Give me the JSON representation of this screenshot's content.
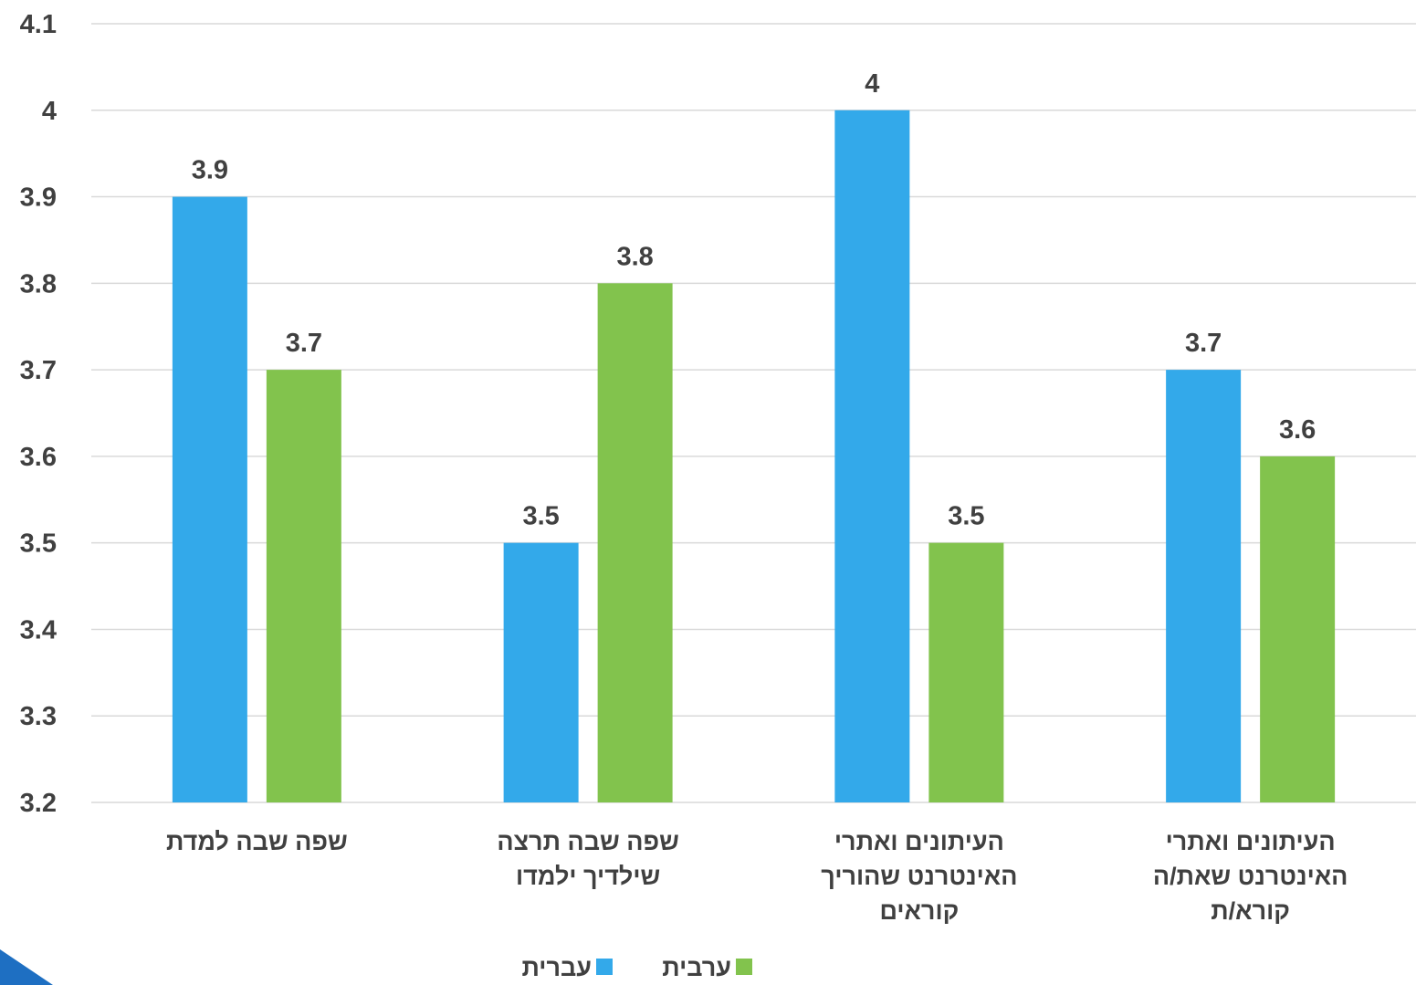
{
  "chart_data": {
    "type": "bar",
    "title": "",
    "xlabel": "",
    "ylabel": "",
    "ylim": [
      3.2,
      4.1
    ],
    "y_ticks": [
      "3.2",
      "3.3",
      "3.4",
      "3.5",
      "3.6",
      "3.7",
      "3.8",
      "3.9",
      "4",
      "4.1"
    ],
    "grid": true,
    "legend_position": "bottom",
    "categories": [
      [
        "שפה שבה למדת"
      ],
      [
        "שפה שבה תרצה",
        "שילדיך ילמדו"
      ],
      [
        "העיתונים ואתרי",
        "האינטרנט שהוריך",
        "קוראים"
      ],
      [
        "העיתונים ואתרי",
        "האינטרנט שאת/ה",
        "קורא/ת"
      ]
    ],
    "series": [
      {
        "name": "עברית",
        "color": "#33a9ea",
        "values": [
          3.9,
          3.5,
          4.0,
          3.7
        ],
        "labels": [
          "3.9",
          "3.5",
          "4",
          "3.7"
        ]
      },
      {
        "name": "ערבית",
        "color": "#82c34d",
        "values": [
          3.7,
          3.8,
          3.5,
          3.6
        ],
        "labels": [
          "3.7",
          "3.8",
          "3.5",
          "3.6"
        ]
      }
    ]
  },
  "decor": {
    "corner_accent_color": "#1e6fc2"
  }
}
